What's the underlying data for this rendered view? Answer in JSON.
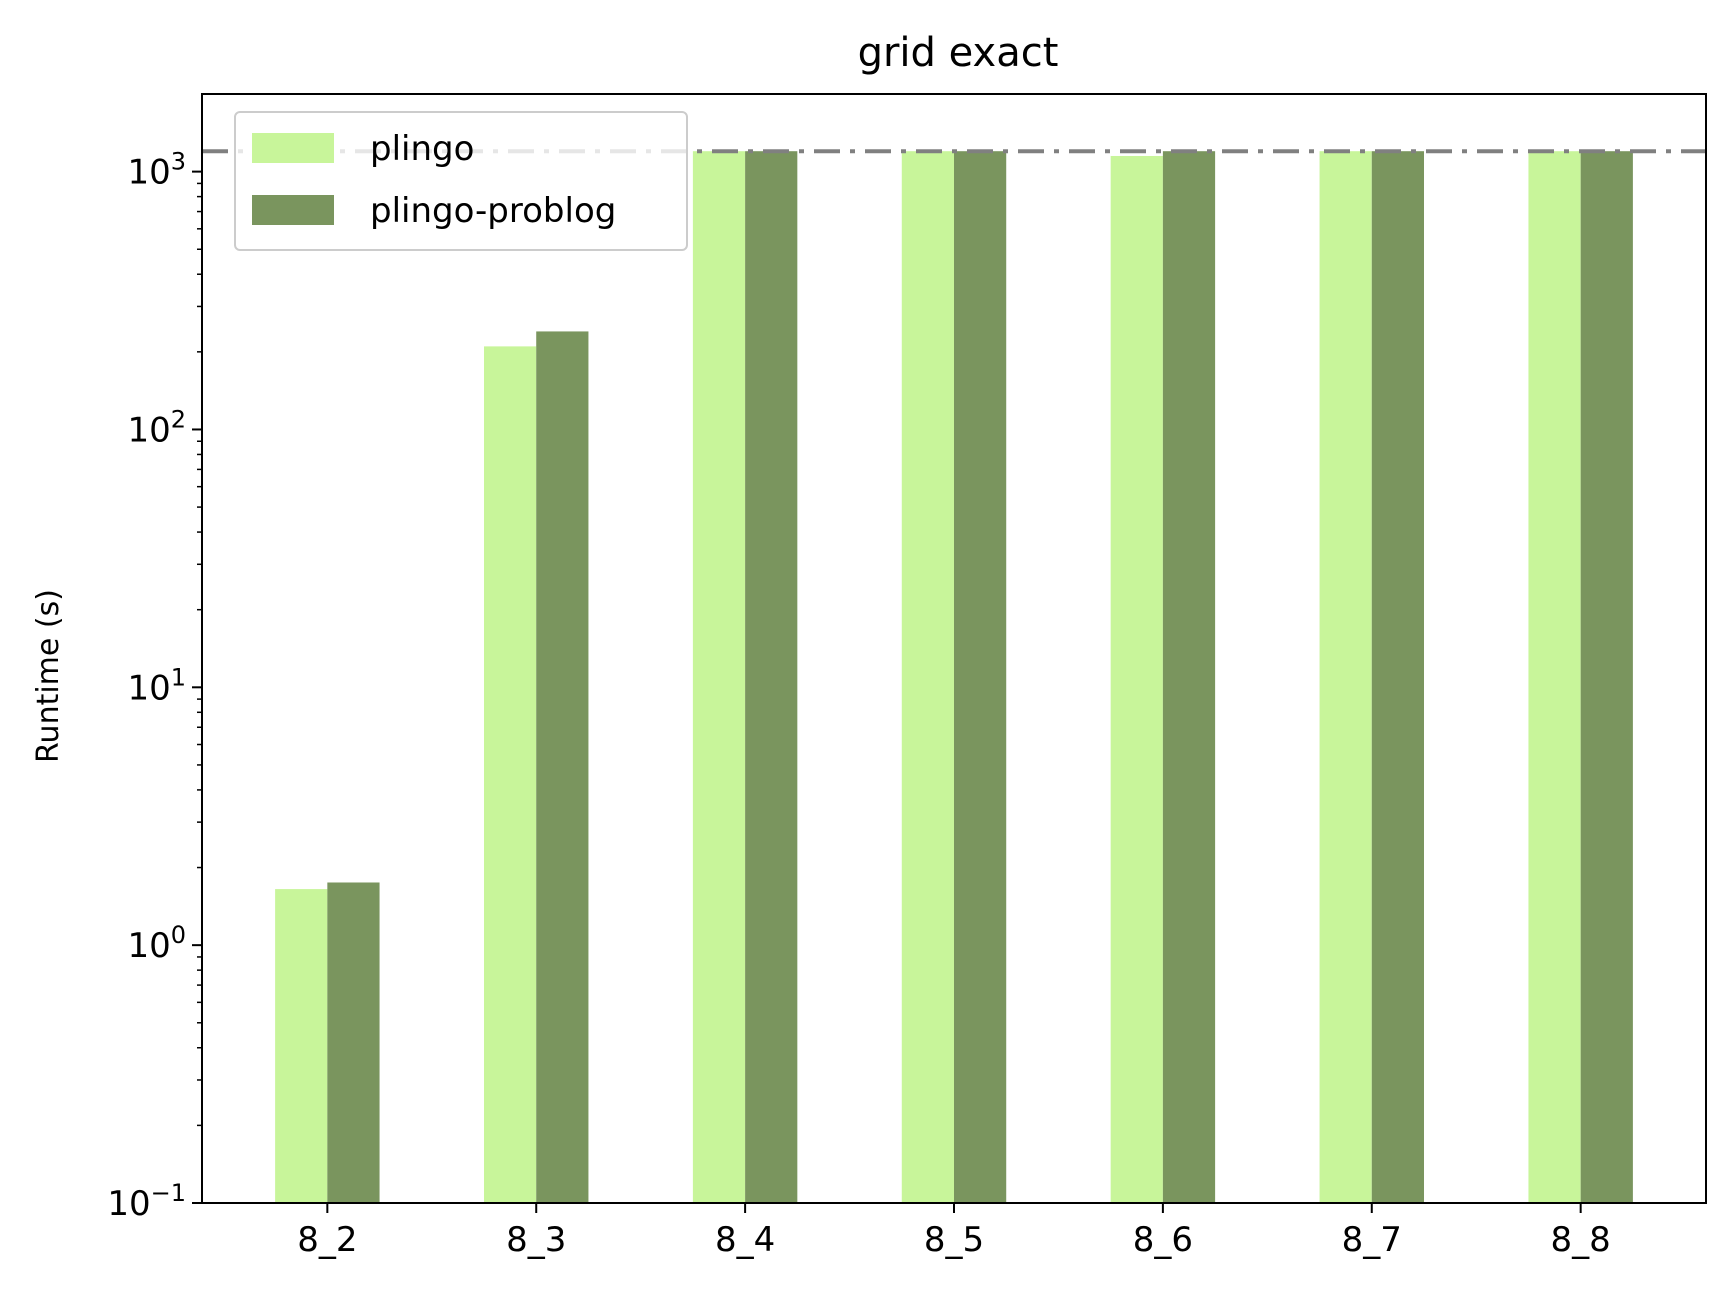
{
  "chart_data": {
    "type": "bar",
    "title": "grid exact",
    "xlabel": "",
    "ylabel": "Runtime (s)",
    "yscale": "log",
    "ylim": [
      0.1,
      2000
    ],
    "y_ticks": [
      {
        "value": 0.1,
        "base": "10",
        "exp": "−1"
      },
      {
        "value": 1,
        "base": "10",
        "exp": "0"
      },
      {
        "value": 10,
        "base": "10",
        "exp": "1"
      },
      {
        "value": 100,
        "base": "10",
        "exp": "2"
      },
      {
        "value": 1000,
        "base": "10",
        "exp": "3"
      }
    ],
    "categories": [
      "8_2",
      "8_3",
      "8_4",
      "8_5",
      "8_6",
      "8_7",
      "8_8"
    ],
    "series": [
      {
        "name": "plingo",
        "color": "#c8f59a",
        "values": [
          1.65,
          210,
          1200,
          1200,
          1150,
          1200,
          1200
        ]
      },
      {
        "name": "plingo-problog",
        "color": "#7a955e",
        "values": [
          1.75,
          240,
          1200,
          1200,
          1200,
          1200,
          1200
        ]
      }
    ],
    "reference_line": {
      "value": 1200,
      "style": "dash-dot",
      "color": "#808080"
    },
    "legend": {
      "position": "top-left"
    },
    "grid": false
  }
}
